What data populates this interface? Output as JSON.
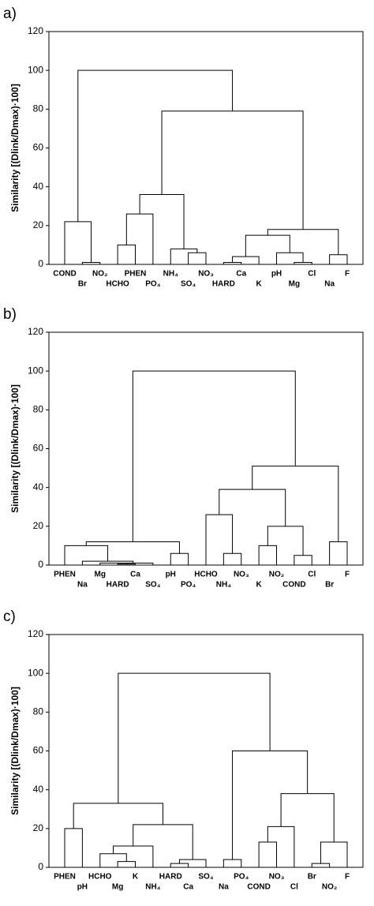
{
  "chart_data": [
    {
      "type": "dendrogram",
      "panel_label": "a)",
      "ylabel": "Similarity [(Dlink/Dmax)·100]",
      "ylim": [
        0,
        120
      ],
      "yticks": [
        0,
        20,
        40,
        60,
        80,
        100,
        120
      ],
      "leaves": [
        "COND",
        "Br",
        "NO₂",
        "HCHO",
        "PHEN",
        "PO₄",
        "NH₄",
        "SO₄",
        "NO₃",
        "HARD",
        "Ca",
        "K",
        "pH",
        "Mg",
        "Cl",
        "Na",
        "F"
      ],
      "merges": [
        [
          1,
          2,
          1
        ],
        [
          0,
          17,
          22
        ],
        [
          3,
          4,
          10
        ],
        [
          19,
          5,
          26
        ],
        [
          7,
          8,
          6
        ],
        [
          6,
          21,
          8
        ],
        [
          20,
          22,
          36
        ],
        [
          9,
          10,
          1
        ],
        [
          24,
          11,
          4
        ],
        [
          13,
          14,
          1
        ],
        [
          12,
          26,
          6
        ],
        [
          25,
          27,
          15
        ],
        [
          15,
          16,
          5
        ],
        [
          28,
          29,
          18
        ],
        [
          23,
          30,
          79
        ],
        [
          18,
          31,
          100
        ]
      ]
    },
    {
      "type": "dendrogram",
      "panel_label": "b)",
      "ylabel": "Similarity [(Dlink/Dmax)·100]",
      "ylim": [
        0,
        120
      ],
      "yticks": [
        0,
        20,
        40,
        60,
        80,
        100,
        120
      ],
      "leaves": [
        "PHEN",
        "Na",
        "Mg",
        "HARD",
        "Ca",
        "SO₄",
        "pH",
        "PO₄",
        "HCHO",
        "NH₄",
        "NO₃",
        "K",
        "NO₂",
        "COND",
        "Cl",
        "Br",
        "F"
      ],
      "merges": [
        [
          3,
          4,
          0.5
        ],
        [
          2,
          17,
          1
        ],
        [
          18,
          5,
          1
        ],
        [
          1,
          19,
          2
        ],
        [
          0,
          20,
          10
        ],
        [
          6,
          7,
          6
        ],
        [
          21,
          22,
          12
        ],
        [
          9,
          10,
          6
        ],
        [
          8,
          24,
          26
        ],
        [
          11,
          12,
          10
        ],
        [
          13,
          14,
          5
        ],
        [
          26,
          27,
          20
        ],
        [
          25,
          28,
          39
        ],
        [
          15,
          16,
          12
        ],
        [
          29,
          30,
          51
        ],
        [
          23,
          31,
          100
        ]
      ]
    },
    {
      "type": "dendrogram",
      "panel_label": "c)",
      "ylabel": "Similarity [(Dlink/Dmax)·100]",
      "ylim": [
        0,
        120
      ],
      "yticks": [
        0,
        20,
        40,
        60,
        80,
        100,
        120
      ],
      "leaves": [
        "PHEN",
        "pH",
        "HCHO",
        "Mg",
        "K",
        "NH₄",
        "HARD",
        "Ca",
        "SO₄",
        "Na",
        "PO₄",
        "COND",
        "NO₃",
        "Cl",
        "Br",
        "NO₂",
        "F"
      ],
      "merges": [
        [
          0,
          1,
          20
        ],
        [
          3,
          4,
          3
        ],
        [
          2,
          18,
          7
        ],
        [
          6,
          7,
          2
        ],
        [
          20,
          8,
          4
        ],
        [
          19,
          5,
          11
        ],
        [
          22,
          21,
          22
        ],
        [
          17,
          23,
          33
        ],
        [
          9,
          10,
          4
        ],
        [
          11,
          12,
          13
        ],
        [
          26,
          13,
          21
        ],
        [
          14,
          15,
          2
        ],
        [
          28,
          16,
          13
        ],
        [
          27,
          29,
          38
        ],
        [
          25,
          30,
          60
        ],
        [
          24,
          31,
          100
        ]
      ]
    }
  ]
}
